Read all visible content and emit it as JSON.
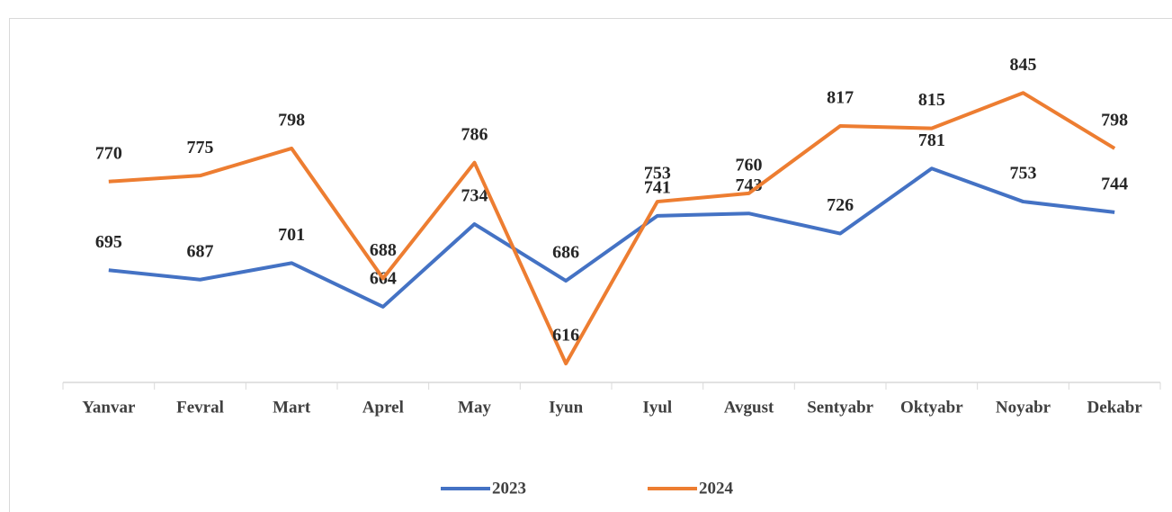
{
  "chart_data": {
    "type": "line",
    "categories": [
      "Yanvar",
      "Fevral",
      "Mart",
      "Aprel",
      "May",
      "Iyun",
      "Iyul",
      "Avgust",
      "Sentyabr",
      "Oktyabr",
      "Noyabr",
      "Dekabr"
    ],
    "series": [
      {
        "name": "2023",
        "color": "#4472c4",
        "values": [
          695,
          687,
          701,
          664,
          734,
          686,
          741,
          743,
          726,
          781,
          753,
          744
        ]
      },
      {
        "name": "2024",
        "color": "#ed7d31",
        "values": [
          770,
          775,
          798,
          688,
          786,
          616,
          753,
          760,
          817,
          815,
          845,
          798
        ]
      }
    ],
    "ylim": [
      600,
      900
    ],
    "legend": "bottom",
    "data_labels": true
  }
}
